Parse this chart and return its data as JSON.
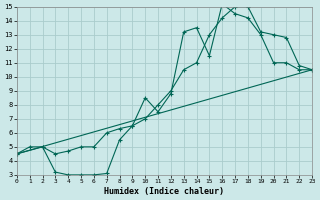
{
  "xlabel": "Humidex (Indice chaleur)",
  "bg_color": "#cce8e8",
  "grid_color": "#aacccc",
  "line_color": "#006655",
  "xlim": [
    0,
    23
  ],
  "ylim": [
    3,
    15
  ],
  "xticks": [
    0,
    1,
    2,
    3,
    4,
    5,
    6,
    7,
    8,
    9,
    10,
    11,
    12,
    13,
    14,
    15,
    16,
    17,
    18,
    19,
    20,
    21,
    22,
    23
  ],
  "yticks": [
    3,
    4,
    5,
    6,
    7,
    8,
    9,
    10,
    11,
    12,
    13,
    14,
    15
  ],
  "line1_x": [
    0,
    1,
    2,
    3,
    4,
    5,
    6,
    7,
    8,
    9,
    10,
    11,
    12,
    13,
    14,
    15,
    16,
    17,
    18,
    19,
    20,
    21,
    22,
    23
  ],
  "line1_y": [
    4.5,
    5.0,
    5.0,
    4.5,
    4.7,
    5.0,
    5.0,
    6.0,
    6.3,
    6.5,
    7.0,
    8.0,
    9.0,
    10.5,
    11.0,
    13.0,
    14.2,
    15.0,
    15.0,
    13.2,
    13.0,
    12.8,
    10.8,
    10.5
  ],
  "line2_x": [
    0,
    2,
    3,
    4,
    5,
    6,
    7,
    8,
    9,
    10,
    11,
    12,
    13,
    14,
    15,
    16,
    17,
    18,
    19,
    20,
    21,
    22,
    23
  ],
  "line2_y": [
    4.5,
    5.0,
    3.2,
    3.0,
    3.0,
    3.0,
    3.1,
    5.5,
    6.5,
    8.5,
    7.5,
    8.8,
    13.2,
    13.5,
    11.5,
    15.2,
    14.5,
    14.2,
    13.0,
    11.0,
    11.0,
    10.5,
    10.5
  ],
  "line3_x": [
    0,
    23
  ],
  "line3_y": [
    4.5,
    10.5
  ]
}
